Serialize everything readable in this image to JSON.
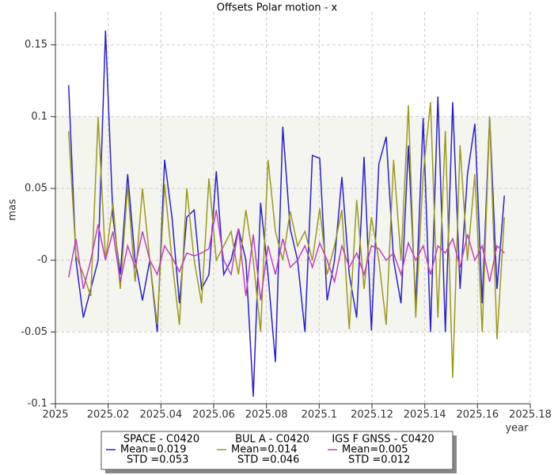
{
  "chart_data": {
    "type": "line",
    "title": "Offsets Polar motion - x",
    "xlabel": "year",
    "ylabel": "mas",
    "xlim": [
      2025,
      2025.18
    ],
    "ylim": [
      -0.1,
      0.173
    ],
    "xticks": [
      2025,
      2025.02,
      2025.04,
      2025.06,
      2025.08,
      2025.1,
      2025.12,
      2025.14,
      2025.16,
      2025.18
    ],
    "yticks": [
      -0.1,
      -0.05,
      {
        "value": 0,
        "label": "-0"
      },
      0.05,
      0.1,
      0.15
    ],
    "grid": true,
    "band": [
      -0.05,
      0.1
    ],
    "x": [
      2025.005,
      2025.0078,
      2025.0106,
      2025.0134,
      2025.0162,
      2025.019,
      2025.0218,
      2025.0246,
      2025.0274,
      2025.0302,
      2025.033,
      2025.0358,
      2025.0386,
      2025.0414,
      2025.0442,
      2025.047,
      2025.0498,
      2025.0526,
      2025.0554,
      2025.0582,
      2025.061,
      2025.0638,
      2025.0666,
      2025.0694,
      2025.0722,
      2025.075,
      2025.0778,
      2025.0806,
      2025.0834,
      2025.0862,
      2025.089,
      2025.0918,
      2025.0946,
      2025.0974,
      2025.1002,
      2025.103,
      2025.1058,
      2025.1086,
      2025.1114,
      2025.1142,
      2025.117,
      2025.1198,
      2025.1226,
      2025.1254,
      2025.1282,
      2025.131,
      2025.1338,
      2025.1366,
      2025.1394,
      2025.1422,
      2025.145,
      2025.1478,
      2025.1506,
      2025.1534,
      2025.1562,
      2025.159,
      2025.1618,
      2025.1646,
      2025.1674,
      2025.1702
    ],
    "series": [
      {
        "name": "SPACE - C0420",
        "color": "#2a1fd0",
        "mean_label": "Mean=0.019",
        "std_label": "STD =0.053",
        "values": [
          0.122,
          0.0,
          -0.04,
          -0.02,
          0.0,
          0.16,
          0.03,
          -0.01,
          0.06,
          0.0,
          -0.028,
          0.0,
          -0.05,
          0.07,
          0.03,
          -0.03,
          0.03,
          0.035,
          -0.02,
          -0.01,
          0.062,
          -0.01,
          0.0,
          0.022,
          0.0,
          -0.095,
          0.04,
          -0.01,
          -0.071,
          0.093,
          0.022,
          0.0,
          -0.05,
          0.073,
          0.071,
          -0.028,
          0.0,
          0.058,
          -0.01,
          -0.04,
          0.072,
          -0.049,
          0.067,
          0.086,
          0.0,
          -0.03,
          0.08,
          -0.031,
          0.099,
          -0.05,
          0.114,
          -0.05,
          0.11,
          -0.02,
          0.06,
          0.095,
          -0.03,
          0.1,
          -0.02,
          0.045
        ]
      },
      {
        "name": "BUL A - C0420",
        "color": "#9a9a1a",
        "mean_label": "Mean=0.014",
        "std_label": "STD =0.046",
        "values": [
          0.09,
          0.003,
          -0.01,
          -0.025,
          0.1,
          0.0,
          0.04,
          -0.02,
          0.052,
          -0.015,
          0.05,
          0.0,
          -0.045,
          0.053,
          0.0,
          -0.045,
          0.05,
          0.0,
          -0.03,
          0.057,
          0.0,
          0.01,
          0.02,
          -0.01,
          0.035,
          0.0,
          -0.05,
          0.07,
          0.02,
          0.0,
          0.034,
          0.01,
          0.02,
          0.0,
          0.036,
          -0.01,
          0.01,
          0.035,
          -0.048,
          0.042,
          -0.02,
          0.03,
          0.0,
          -0.045,
          0.07,
          0.0,
          0.108,
          -0.04,
          0.06,
          0.11,
          -0.04,
          0.09,
          -0.082,
          0.08,
          0.0,
          0.06,
          -0.05,
          0.1,
          -0.055,
          0.03
        ]
      },
      {
        "name": "IGS F GNSS - C0420",
        "color": "#c040c0",
        "mean_label": "Mean=0.005",
        "std_label": "STD =0.012",
        "values": [
          -0.012,
          0.015,
          -0.02,
          0.0,
          0.025,
          0.0,
          0.02,
          -0.015,
          0.01,
          -0.005,
          0.02,
          0.0,
          -0.01,
          0.01,
          0.002,
          -0.008,
          0.005,
          0.003,
          0.005,
          0.008,
          0.035,
          0.0,
          -0.01,
          0.022,
          -0.025,
          0.018,
          -0.028,
          0.01,
          -0.01,
          0.015,
          -0.005,
          0.0,
          0.01,
          -0.005,
          0.012,
          0.0,
          -0.015,
          0.01,
          -0.005,
          0.005,
          -0.01,
          0.01,
          0.008,
          0.0,
          0.005,
          -0.01,
          0.012,
          0.0,
          0.01,
          -0.01,
          0.01,
          0.005,
          0.015,
          -0.005,
          0.018,
          0.0,
          0.01,
          -0.015,
          0.01,
          0.005
        ]
      }
    ]
  }
}
